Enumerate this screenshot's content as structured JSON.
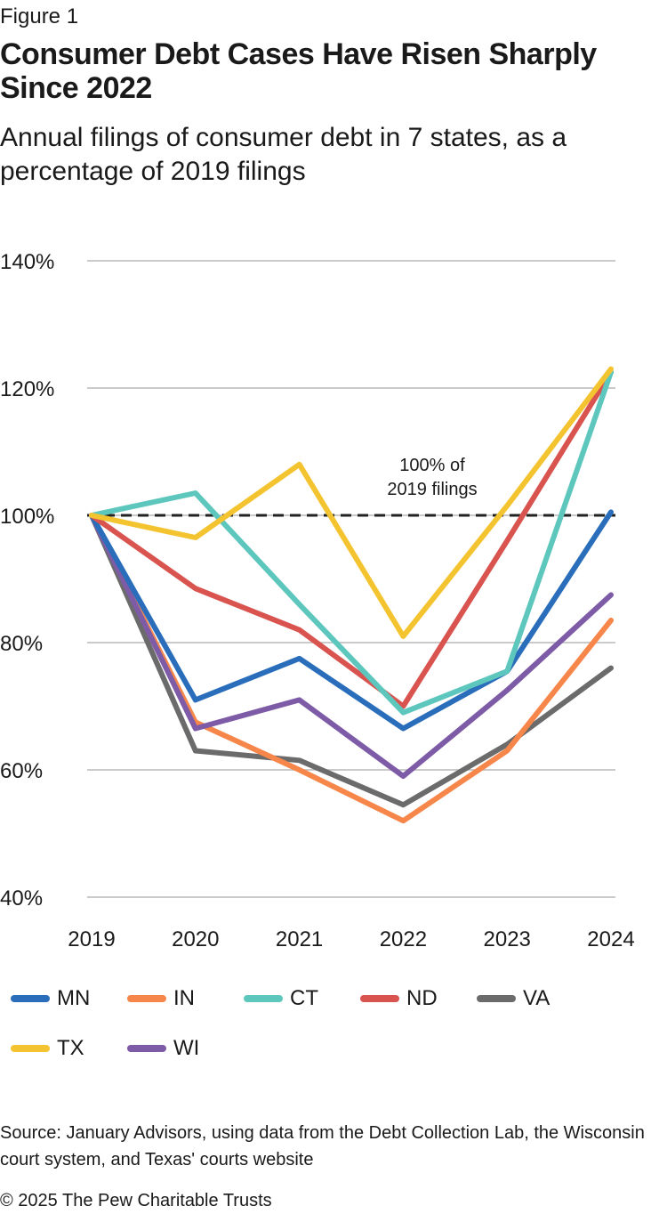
{
  "figure_label": "Figure 1",
  "title": "Consumer Debt Cases Have Risen Sharply Since 2022",
  "subtitle": "Annual filings of consumer debt in 7 states, as a percentage of 2019 filings",
  "source": "Source: January Advisors, using data from the Debt Collection Lab, the Wisconsin court system, and Texas' courts website",
  "copyright": "© 2025 The Pew Charitable Trusts",
  "chart_data": {
    "type": "line",
    "x": [
      2019,
      2020,
      2021,
      2022,
      2023,
      2024
    ],
    "x_tick_labels": [
      "2019",
      "2020",
      "2021",
      "2022",
      "2023",
      "2024"
    ],
    "y_tick_labels": [
      "140%",
      "120%",
      "100%",
      "80%",
      "60%",
      "40%"
    ],
    "y_ticks": [
      140,
      120,
      100,
      80,
      60,
      40
    ],
    "ylim": [
      40,
      140
    ],
    "grid": true,
    "reference_line": {
      "value": 100,
      "label_line1": "100% of",
      "label_line2": "2019 filings",
      "color": "#222222"
    },
    "legend_position": "bottom",
    "series": [
      {
        "name": "MN",
        "color": "#2a6ebb",
        "values": [
          100,
          71,
          77.5,
          66.5,
          75.5,
          100.5
        ]
      },
      {
        "name": "IN",
        "color": "#f7864a",
        "values": [
          100,
          67.5,
          60,
          52,
          63,
          83.5
        ]
      },
      {
        "name": "CT",
        "color": "#5ec7bd",
        "values": [
          100,
          103.5,
          86,
          69,
          75.5,
          122.5
        ]
      },
      {
        "name": "ND",
        "color": "#d9534f",
        "values": [
          100,
          88.5,
          82,
          70,
          96,
          122.5
        ]
      },
      {
        "name": "VA",
        "color": "#6b6b6b",
        "values": [
          100,
          63,
          61.5,
          54.5,
          64,
          76
        ]
      },
      {
        "name": "TX",
        "color": "#f4c430",
        "values": [
          100,
          96.5,
          108,
          81,
          101.5,
          123
        ]
      },
      {
        "name": "WI",
        "color": "#7d5ba6",
        "values": [
          100,
          66.5,
          71,
          59,
          72.5,
          87.5
        ]
      }
    ]
  }
}
